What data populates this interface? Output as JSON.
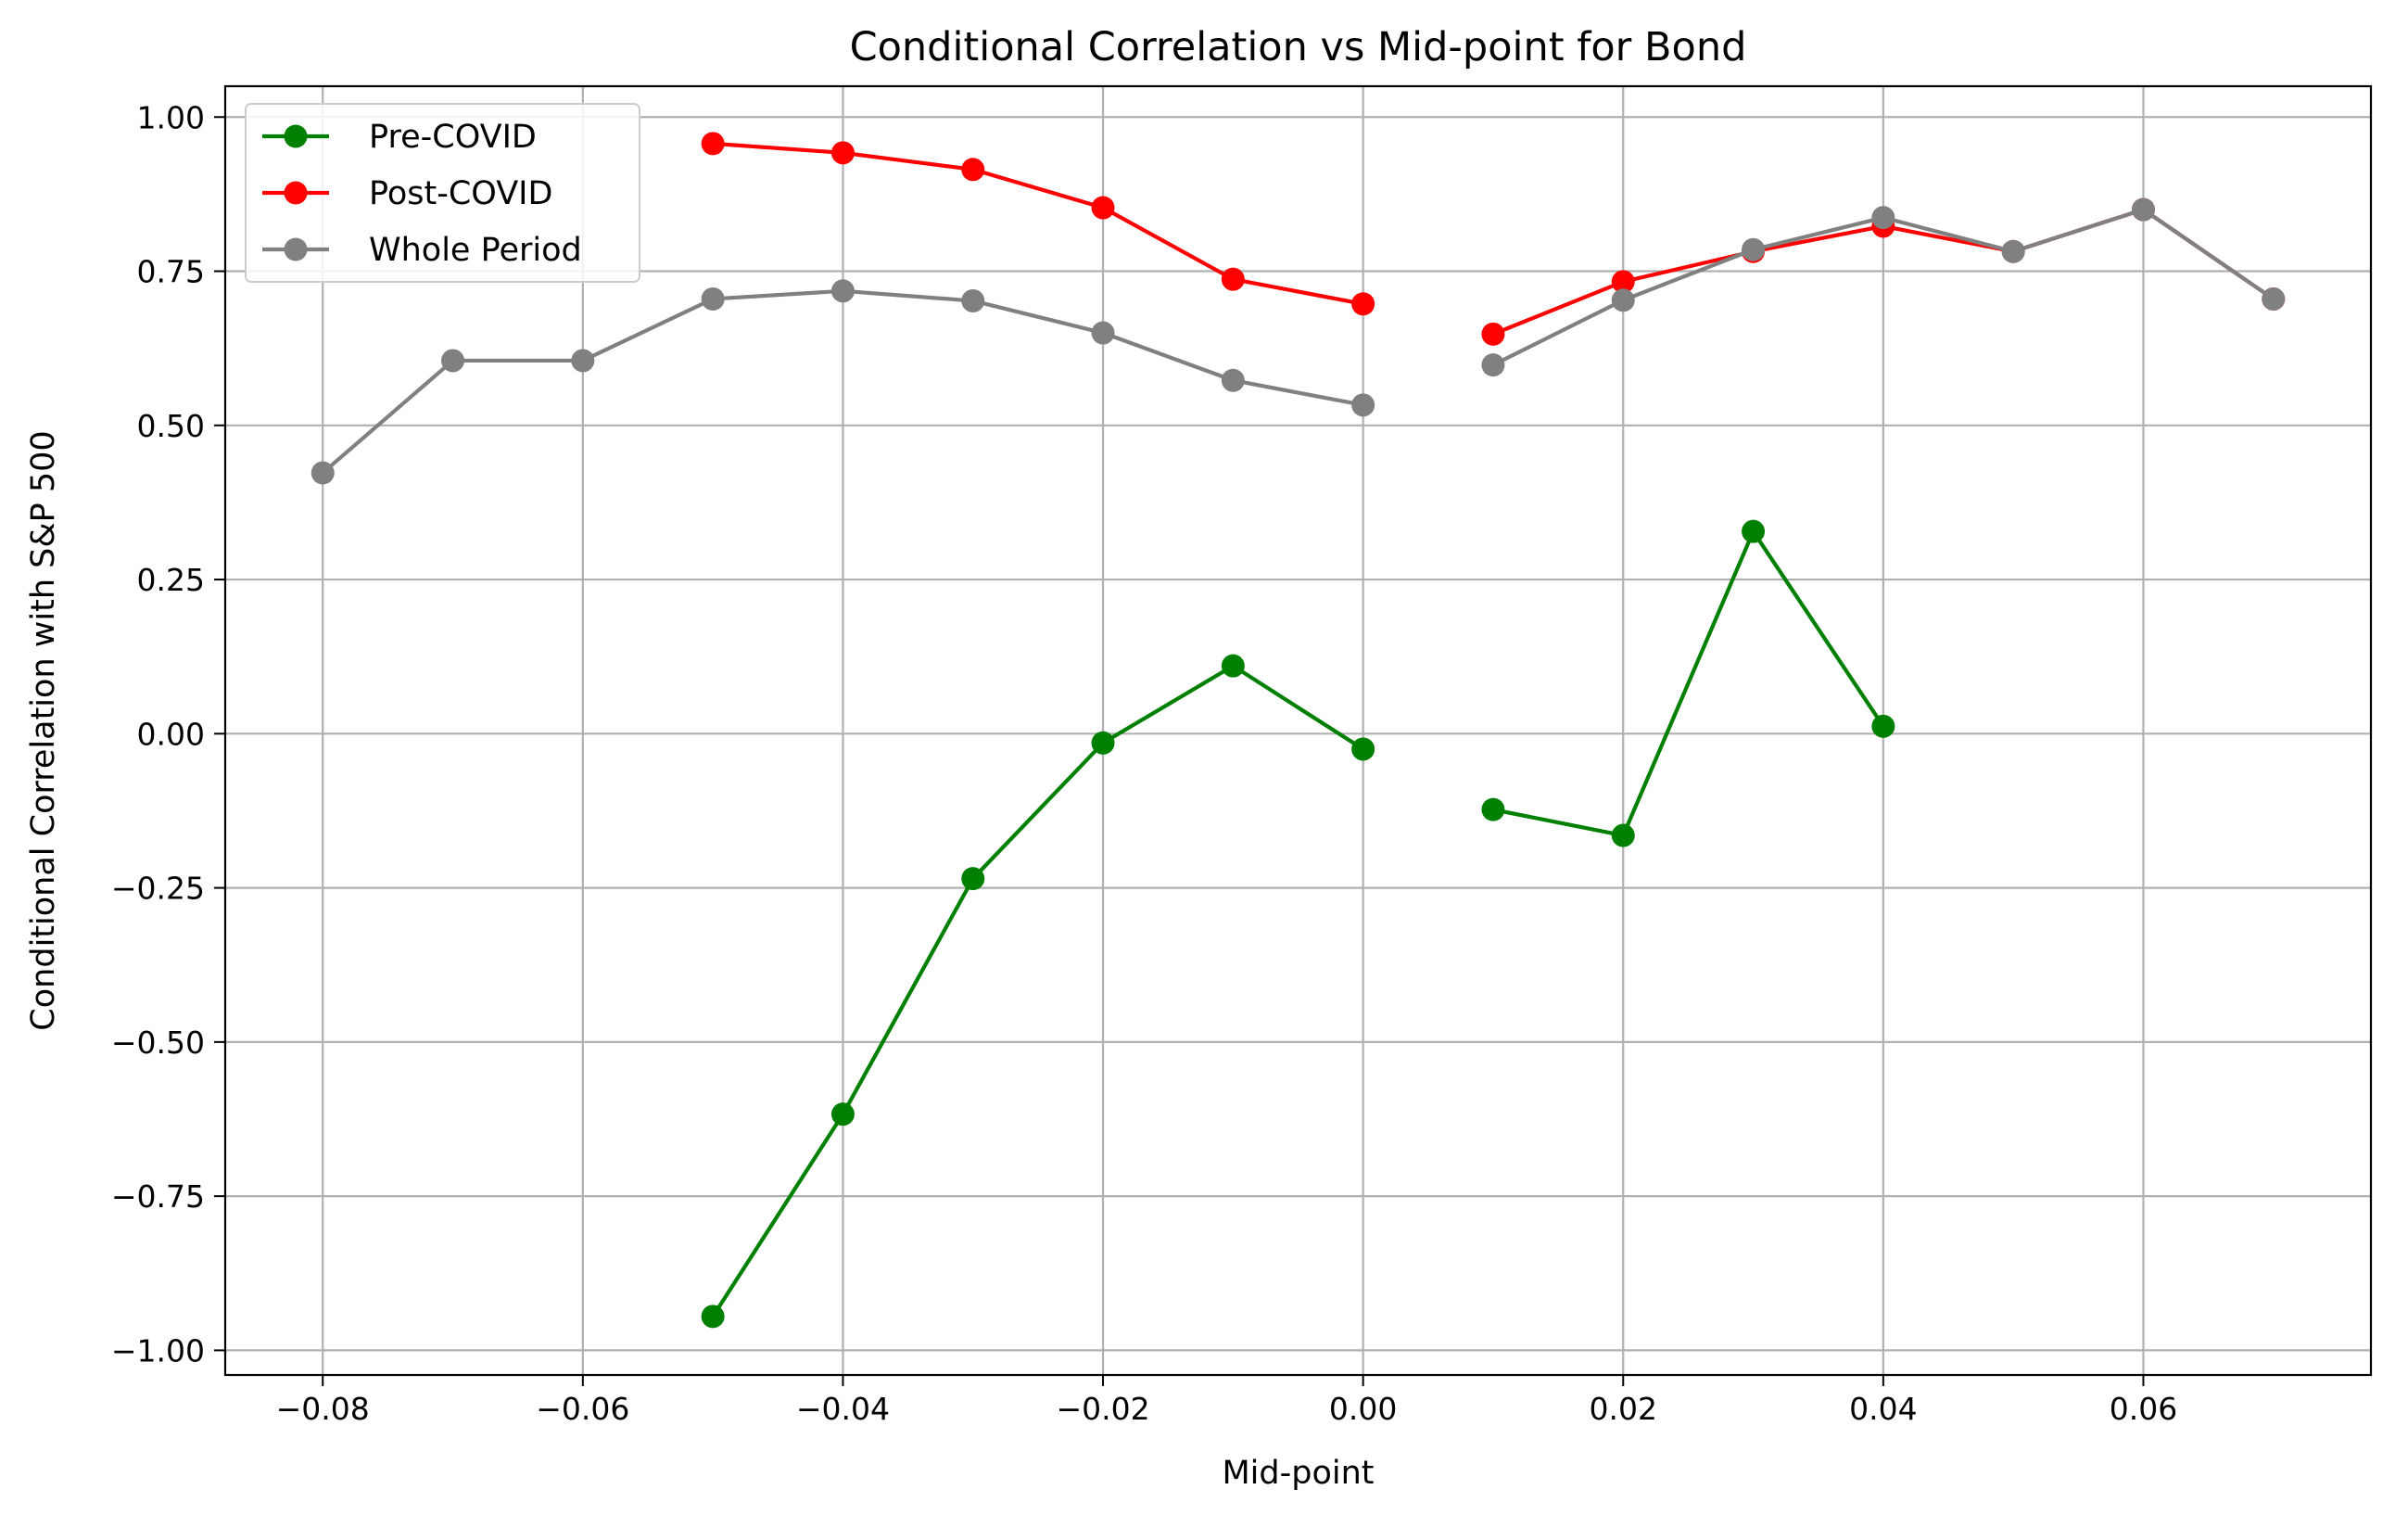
{
  "chart_data": {
    "type": "line",
    "title": "Conditional Correlation vs Mid-point for Bond",
    "xlabel": "Mid-point",
    "ylabel": "Conditional Correlation with S&P 500",
    "xlim": [
      -0.0875,
      0.0775
    ],
    "ylim": [
      -1.04,
      1.05
    ],
    "grid": true,
    "legend_position": "upper-left",
    "x_ticks": [
      -0.08,
      -0.06,
      -0.04,
      -0.02,
      0.0,
      0.02,
      0.04,
      0.06
    ],
    "x_tick_labels": [
      "−0.08",
      "−0.06",
      "−0.04",
      "−0.02",
      "0.00",
      "0.02",
      "0.04",
      "0.06"
    ],
    "y_ticks": [
      1.0,
      0.75,
      0.5,
      0.25,
      0.0,
      -0.25,
      -0.5,
      -0.75,
      -1.0
    ],
    "y_tick_labels": [
      "1.00",
      "0.75",
      "0.50",
      "0.25",
      "0.00",
      "−0.25",
      "−0.50",
      "−0.75",
      "−1.00"
    ],
    "series": [
      {
        "name": "Pre-COVID",
        "color": "#008000",
        "points": [
          [
            -0.05,
            -0.945
          ],
          [
            -0.04,
            -0.617
          ],
          [
            -0.03,
            -0.235
          ],
          [
            -0.02,
            -0.015
          ],
          [
            -0.01,
            0.11
          ],
          [
            0.0,
            -0.025
          ],
          null,
          [
            0.01,
            -0.123
          ],
          [
            0.02,
            -0.165
          ],
          [
            0.03,
            0.328
          ],
          [
            0.04,
            0.012
          ]
        ]
      },
      {
        "name": "Post-COVID",
        "color": "#ff0000",
        "points": [
          [
            -0.05,
            0.957
          ],
          [
            -0.04,
            0.942
          ],
          [
            -0.03,
            0.915
          ],
          [
            -0.02,
            0.853
          ],
          [
            -0.01,
            0.737
          ],
          [
            0.0,
            0.697
          ],
          null,
          [
            0.01,
            0.648
          ],
          [
            0.02,
            0.733
          ],
          [
            0.03,
            0.782
          ],
          [
            0.04,
            0.823
          ],
          [
            0.05,
            0.782
          ],
          [
            0.06,
            0.85
          ],
          [
            0.07,
            0.705
          ]
        ]
      },
      {
        "name": "Whole Period",
        "color": "#808080",
        "points": [
          [
            -0.08,
            0.423
          ],
          [
            -0.07,
            0.605
          ],
          [
            -0.06,
            0.605
          ],
          [
            -0.05,
            0.705
          ],
          [
            -0.04,
            0.718
          ],
          [
            -0.03,
            0.702
          ],
          [
            -0.02,
            0.65
          ],
          [
            -0.01,
            0.573
          ],
          [
            0.0,
            0.533
          ],
          null,
          [
            0.01,
            0.598
          ],
          [
            0.02,
            0.703
          ],
          [
            0.03,
            0.785
          ],
          [
            0.04,
            0.837
          ],
          [
            0.05,
            0.782
          ],
          [
            0.06,
            0.85
          ],
          [
            0.07,
            0.705
          ]
        ]
      }
    ]
  }
}
